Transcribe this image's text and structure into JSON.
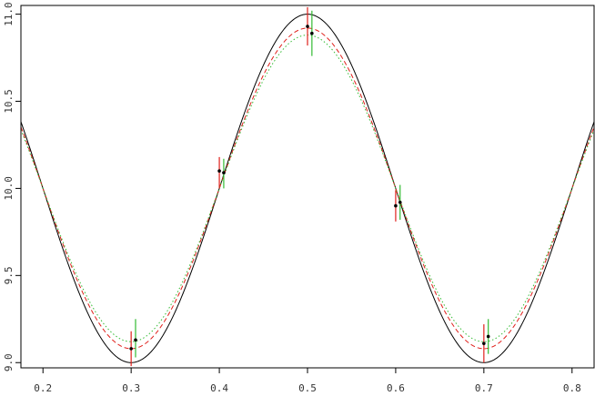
{
  "chart_data": {
    "type": "line",
    "title": "",
    "xlabel": "",
    "ylabel": "",
    "xlim": [
      0.175,
      0.825
    ],
    "ylim": [
      8.97,
      11.05
    ],
    "x_ticks": [
      0.2,
      0.3,
      0.4,
      0.5,
      0.6,
      0.7,
      0.8
    ],
    "x_tick_labels": [
      "0.2",
      "0.3",
      "0.4",
      "0.5",
      "0.6",
      "0.7",
      "0.8"
    ],
    "y_ticks": [
      9.0,
      9.5,
      10.0,
      10.5,
      11.0
    ],
    "y_tick_labels": [
      "9.0",
      "9.5",
      "10.0",
      "10.5",
      "11.0"
    ],
    "grid": false,
    "legend": "none",
    "curves": [
      {
        "style": "solid",
        "color": "#000000",
        "mean": 10.0,
        "amplitude": 1.0,
        "period": 0.4,
        "peak_x": 0.5
      },
      {
        "style": "dashed",
        "color": "#e0201b",
        "mean": 10.0,
        "amplitude": 0.92,
        "period": 0.4,
        "peak_x": 0.5
      },
      {
        "style": "dotted",
        "color": "#33bb33",
        "mean": 10.0,
        "amplitude": 0.88,
        "period": 0.4,
        "peak_x": 0.5
      }
    ],
    "points": [
      {
        "x": 0.3,
        "y": 9.08,
        "lo": 8.98,
        "hi": 9.18,
        "point_color": "#000000",
        "bar_color": "#e0201b"
      },
      {
        "x": 0.305,
        "y": 9.13,
        "lo": 9.03,
        "hi": 9.25,
        "point_color": "#000000",
        "bar_color": "#33bb33"
      },
      {
        "x": 0.4,
        "y": 10.1,
        "lo": 10.0,
        "hi": 10.18,
        "point_color": "#000000",
        "bar_color": "#e0201b"
      },
      {
        "x": 0.405,
        "y": 10.09,
        "lo": 10.0,
        "hi": 10.17,
        "point_color": "#000000",
        "bar_color": "#33bb33"
      },
      {
        "x": 0.5,
        "y": 10.93,
        "lo": 10.82,
        "hi": 11.04,
        "point_color": "#000000",
        "bar_color": "#e0201b"
      },
      {
        "x": 0.505,
        "y": 10.89,
        "lo": 10.76,
        "hi": 11.02,
        "point_color": "#000000",
        "bar_color": "#33bb33"
      },
      {
        "x": 0.6,
        "y": 9.9,
        "lo": 9.81,
        "hi": 9.99,
        "point_color": "#000000",
        "bar_color": "#e0201b"
      },
      {
        "x": 0.605,
        "y": 9.92,
        "lo": 9.82,
        "hi": 10.02,
        "point_color": "#000000",
        "bar_color": "#33bb33"
      },
      {
        "x": 0.7,
        "y": 9.11,
        "lo": 9.0,
        "hi": 9.22,
        "point_color": "#000000",
        "bar_color": "#e0201b"
      },
      {
        "x": 0.705,
        "y": 9.15,
        "lo": 9.05,
        "hi": 9.25,
        "point_color": "#000000",
        "bar_color": "#33bb33"
      }
    ]
  }
}
